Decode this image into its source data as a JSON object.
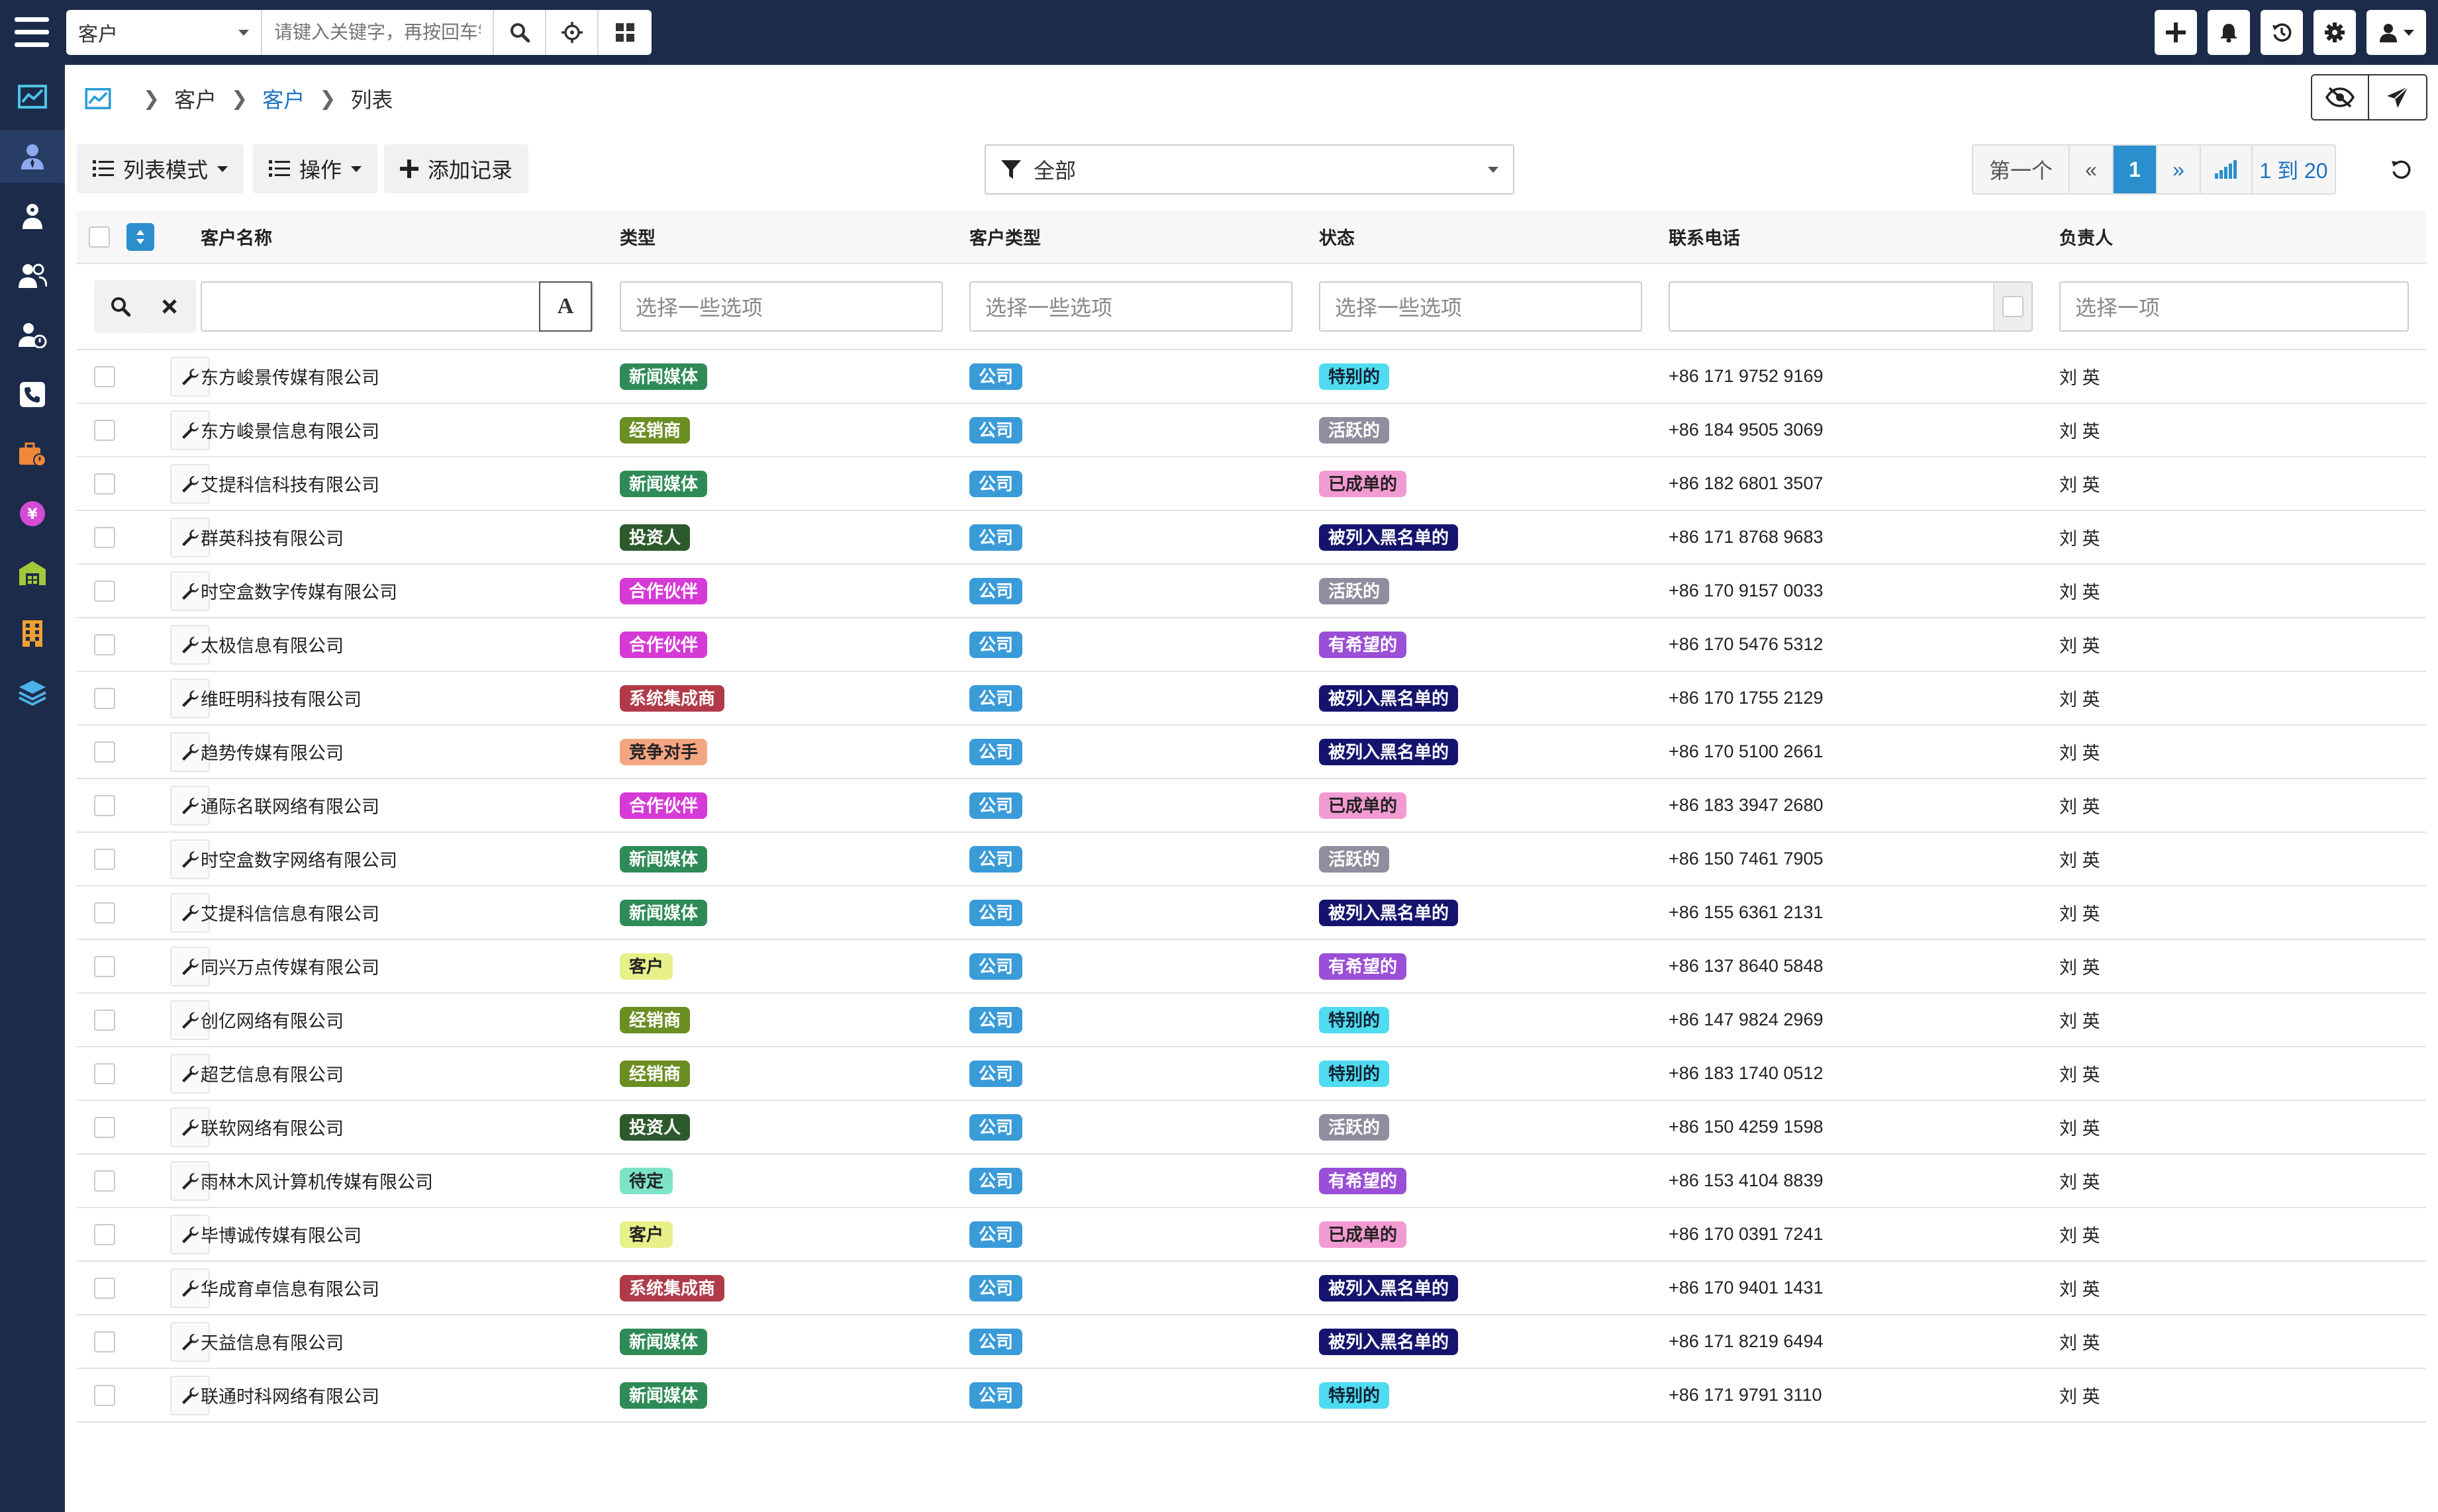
{
  "search": {
    "module": "客户",
    "placeholder": "请键入关键字，再按回车键"
  },
  "breadcrumb": {
    "level1": "客户",
    "level2": "客户",
    "level3": "列表"
  },
  "toolbar": {
    "list_mode": "列表模式",
    "actions": "操作",
    "add_record": "添加记录",
    "filter": "全部"
  },
  "pager": {
    "first": "第一个",
    "prev": "«",
    "current": "1",
    "next": "»",
    "range": "1 到 20"
  },
  "columns": {
    "name": "客户名称",
    "type": "类型",
    "customer_type": "客户类型",
    "status": "状态",
    "phone": "联系电话",
    "owner": "负责人"
  },
  "filters": {
    "type_placeholder": "选择一些选项",
    "customer_type_placeholder": "选择一些选项",
    "status_placeholder": "选择一些选项",
    "owner_placeholder": "选择一项",
    "text_icon": "A"
  },
  "badge_colors": {
    "新闻媒体": "#2e8b57",
    "经销商": "#6b8e23",
    "投资人": "#2d5a2d",
    "合作伙伴": "#d63ad6",
    "系统集成商": "#b03a48",
    "竞争对手": "#f4a582",
    "客户": "#e8f08a",
    "待定": "#7de3c8",
    "公司": "#3a9bd9",
    "特别的": "#4fdbf0",
    "活跃的": "#8e8e9e",
    "已成单的": "#f29ad2",
    "被列入黑名单的": "#14146e",
    "有希望的": "#9a4fd6"
  },
  "rows": [
    {
      "name": "东方峻景传媒有限公司",
      "type": "新闻媒体",
      "ctype": "公司",
      "status": "特别的",
      "phone": "+86 171 9752 9169",
      "owner": "刘 英"
    },
    {
      "name": "东方峻景信息有限公司",
      "type": "经销商",
      "ctype": "公司",
      "status": "活跃的",
      "phone": "+86 184 9505 3069",
      "owner": "刘 英"
    },
    {
      "name": "艾提科信科技有限公司",
      "type": "新闻媒体",
      "ctype": "公司",
      "status": "已成单的",
      "phone": "+86 182 6801 3507",
      "owner": "刘 英"
    },
    {
      "name": "群英科技有限公司",
      "type": "投资人",
      "ctype": "公司",
      "status": "被列入黑名单的",
      "phone": "+86 171 8768 9683",
      "owner": "刘 英"
    },
    {
      "name": "时空盒数字传媒有限公司",
      "type": "合作伙伴",
      "ctype": "公司",
      "status": "活跃的",
      "phone": "+86 170 9157 0033",
      "owner": "刘 英"
    },
    {
      "name": "太极信息有限公司",
      "type": "合作伙伴",
      "ctype": "公司",
      "status": "有希望的",
      "phone": "+86 170 5476 5312",
      "owner": "刘 英"
    },
    {
      "name": "维旺明科技有限公司",
      "type": "系统集成商",
      "ctype": "公司",
      "status": "被列入黑名单的",
      "phone": "+86 170 1755 2129",
      "owner": "刘 英"
    },
    {
      "name": "趋势传媒有限公司",
      "type": "竞争对手",
      "ctype": "公司",
      "status": "被列入黑名单的",
      "phone": "+86 170 5100 2661",
      "owner": "刘 英"
    },
    {
      "name": "通际名联网络有限公司",
      "type": "合作伙伴",
      "ctype": "公司",
      "status": "已成单的",
      "phone": "+86 183 3947 2680",
      "owner": "刘 英"
    },
    {
      "name": "时空盒数字网络有限公司",
      "type": "新闻媒体",
      "ctype": "公司",
      "status": "活跃的",
      "phone": "+86 150 7461 7905",
      "owner": "刘 英"
    },
    {
      "name": "艾提科信信息有限公司",
      "type": "新闻媒体",
      "ctype": "公司",
      "status": "被列入黑名单的",
      "phone": "+86 155 6361 2131",
      "owner": "刘 英"
    },
    {
      "name": "同兴万点传媒有限公司",
      "type": "客户",
      "ctype": "公司",
      "status": "有希望的",
      "phone": "+86 137 8640 5848",
      "owner": "刘 英"
    },
    {
      "name": "创亿网络有限公司",
      "type": "经销商",
      "ctype": "公司",
      "status": "特别的",
      "phone": "+86 147 9824 2969",
      "owner": "刘 英"
    },
    {
      "name": "超艺信息有限公司",
      "type": "经销商",
      "ctype": "公司",
      "status": "特别的",
      "phone": "+86 183 1740 0512",
      "owner": "刘 英"
    },
    {
      "name": "联软网络有限公司",
      "type": "投资人",
      "ctype": "公司",
      "status": "活跃的",
      "phone": "+86 150 4259 1598",
      "owner": "刘 英"
    },
    {
      "name": "雨林木风计算机传媒有限公司",
      "type": "待定",
      "ctype": "公司",
      "status": "有希望的",
      "phone": "+86 153 4104 8839",
      "owner": "刘 英"
    },
    {
      "name": "毕博诚传媒有限公司",
      "type": "客户",
      "ctype": "公司",
      "status": "已成单的",
      "phone": "+86 170 0391 7241",
      "owner": "刘 英"
    },
    {
      "name": "华成育卓信息有限公司",
      "type": "系统集成商",
      "ctype": "公司",
      "status": "被列入黑名单的",
      "phone": "+86 170 9401 1431",
      "owner": "刘 英"
    },
    {
      "name": "天益信息有限公司",
      "type": "新闻媒体",
      "ctype": "公司",
      "status": "被列入黑名单的",
      "phone": "+86 171 8219 6494",
      "owner": "刘 英"
    },
    {
      "name": "联通时科网络有限公司",
      "type": "新闻媒体",
      "ctype": "公司",
      "status": "特别的",
      "phone": "+86 171 9791 3110",
      "owner": "刘 英"
    }
  ]
}
